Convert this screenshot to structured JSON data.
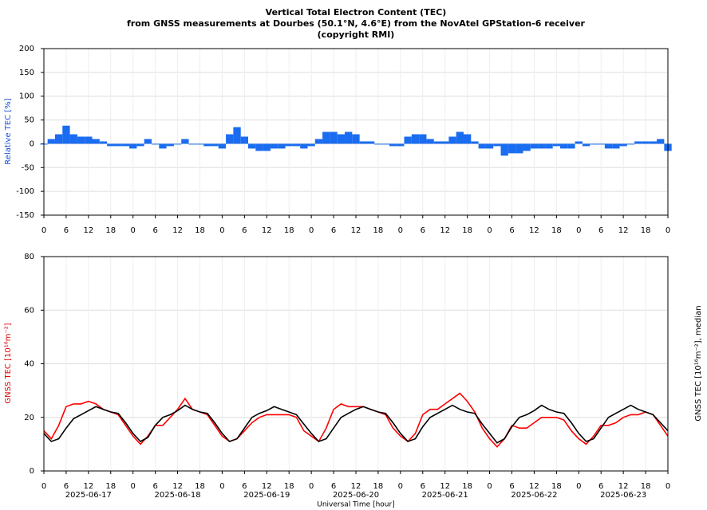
{
  "chart_data": [
    {
      "type": "bar",
      "title_lines": [
        "Vertical Total Electron Content (TEC)",
        "from GNSS measurements at Dourbes (50.1°N, 4.6°E) from the NovAtel GPStation-6 receiver",
        "(copyright RMI)"
      ],
      "ylabel": "Relative TEC [%]",
      "ylim": [
        -150,
        200
      ],
      "yticks": [
        -150,
        -100,
        -50,
        0,
        50,
        100,
        150,
        200
      ],
      "xlim": [
        0,
        168
      ],
      "xticks": [
        0,
        6,
        12,
        18,
        {
          "value": 24,
          "label": "0"
        },
        {
          "value": 30,
          "label": "6"
        },
        {
          "value": 36,
          "label": "12"
        },
        {
          "value": 42,
          "label": "18"
        },
        {
          "value": 48,
          "label": "0"
        },
        {
          "value": 54,
          "label": "6"
        },
        {
          "value": 60,
          "label": "12"
        },
        {
          "value": 66,
          "label": "18"
        },
        {
          "value": 72,
          "label": "0"
        },
        {
          "value": 78,
          "label": "6"
        },
        {
          "value": 84,
          "label": "12"
        },
        {
          "value": 90,
          "label": "18"
        },
        {
          "value": 96,
          "label": "0"
        },
        {
          "value": 102,
          "label": "6"
        },
        {
          "value": 108,
          "label": "12"
        },
        {
          "value": 114,
          "label": "18"
        },
        {
          "value": 120,
          "label": "0"
        },
        {
          "value": 126,
          "label": "6"
        },
        {
          "value": 132,
          "label": "12"
        },
        {
          "value": 138,
          "label": "18"
        },
        {
          "value": 144,
          "label": "0"
        },
        {
          "value": 150,
          "label": "6"
        },
        {
          "value": 156,
          "label": "12"
        },
        {
          "value": 162,
          "label": "18"
        },
        {
          "value": 168,
          "label": "0"
        }
      ],
      "grid": true,
      "x": [
        0,
        2,
        4,
        6,
        8,
        10,
        12,
        14,
        16,
        18,
        20,
        22,
        24,
        26,
        28,
        30,
        32,
        34,
        36,
        38,
        40,
        42,
        44,
        46,
        48,
        50,
        52,
        54,
        56,
        58,
        60,
        62,
        64,
        66,
        68,
        70,
        72,
        74,
        76,
        78,
        80,
        82,
        84,
        86,
        88,
        90,
        92,
        94,
        96,
        98,
        100,
        102,
        104,
        106,
        108,
        110,
        112,
        114,
        116,
        118,
        120,
        122,
        124,
        126,
        128,
        130,
        132,
        134,
        136,
        138,
        140,
        142,
        144,
        146,
        148,
        150,
        152,
        154,
        156,
        158,
        160,
        162,
        164,
        166,
        168
      ],
      "series": [
        {
          "name": "Relative TEC",
          "color": "#1a6cf0",
          "values": [
            0,
            10,
            20,
            38,
            20,
            15,
            15,
            10,
            5,
            -5,
            -5,
            -5,
            -10,
            -5,
            10,
            0,
            -10,
            -5,
            0,
            10,
            0,
            0,
            -5,
            -5,
            -10,
            20,
            35,
            15,
            -10,
            -15,
            -15,
            -10,
            -10,
            -5,
            -5,
            -10,
            -5,
            10,
            25,
            25,
            20,
            25,
            20,
            5,
            5,
            0,
            0,
            -5,
            -5,
            15,
            20,
            20,
            10,
            5,
            5,
            15,
            25,
            20,
            5,
            -10,
            -10,
            -5,
            -25,
            -20,
            -20,
            -15,
            -10,
            -10,
            -10,
            -5,
            -10,
            -10,
            5,
            -5,
            0,
            0,
            -10,
            -10,
            -5,
            0,
            5,
            5,
            5,
            10,
            -15
          ]
        }
      ]
    },
    {
      "type": "line",
      "ylabel": "GNSS TEC [10¹⁶m⁻²]",
      "y2label": "GNSS TEC [10¹⁶m⁻²], median",
      "xlabel": "Universal Time [hour]",
      "ylim": [
        0,
        80
      ],
      "yticks": [
        0,
        20,
        40,
        60,
        80
      ],
      "xlim": [
        0,
        168
      ],
      "xticks": [
        0,
        6,
        12,
        18,
        {
          "value": 24,
          "label": "0"
        },
        {
          "value": 30,
          "label": "6"
        },
        {
          "value": 36,
          "label": "12"
        },
        {
          "value": 42,
          "label": "18"
        },
        {
          "value": 48,
          "label": "0"
        },
        {
          "value": 54,
          "label": "6"
        },
        {
          "value": 60,
          "label": "12"
        },
        {
          "value": 66,
          "label": "18"
        },
        {
          "value": 72,
          "label": "0"
        },
        {
          "value": 78,
          "label": "6"
        },
        {
          "value": 84,
          "label": "12"
        },
        {
          "value": 90,
          "label": "18"
        },
        {
          "value": 96,
          "label": "0"
        },
        {
          "value": 102,
          "label": "6"
        },
        {
          "value": 108,
          "label": "12"
        },
        {
          "value": 114,
          "label": "18"
        },
        {
          "value": 120,
          "label": "0"
        },
        {
          "value": 126,
          "label": "6"
        },
        {
          "value": 132,
          "label": "12"
        },
        {
          "value": 138,
          "label": "18"
        },
        {
          "value": 144,
          "label": "0"
        },
        {
          "value": 150,
          "label": "6"
        },
        {
          "value": 156,
          "label": "12"
        },
        {
          "value": 162,
          "label": "18"
        },
        {
          "value": 168,
          "label": "0"
        }
      ],
      "date_ticks": [
        {
          "value": 12,
          "label": "2025-06-17"
        },
        {
          "value": 36,
          "label": "2025-06-18"
        },
        {
          "value": 60,
          "label": "2025-06-19"
        },
        {
          "value": 84,
          "label": "2025-06-20"
        },
        {
          "value": 108,
          "label": "2025-06-21"
        },
        {
          "value": 132,
          "label": "2025-06-22"
        },
        {
          "value": 156,
          "label": "2025-06-23"
        }
      ],
      "grid": true,
      "x": [
        0,
        2,
        4,
        6,
        8,
        10,
        12,
        14,
        16,
        18,
        20,
        22,
        24,
        26,
        28,
        30,
        32,
        34,
        36,
        38,
        40,
        42,
        44,
        46,
        48,
        50,
        52,
        54,
        56,
        58,
        60,
        62,
        64,
        66,
        68,
        70,
        72,
        74,
        76,
        78,
        80,
        82,
        84,
        86,
        88,
        90,
        92,
        94,
        96,
        98,
        100,
        102,
        104,
        106,
        108,
        110,
        112,
        114,
        116,
        118,
        120,
        122,
        124,
        126,
        128,
        130,
        132,
        134,
        136,
        138,
        140,
        142,
        144,
        146,
        148,
        150,
        152,
        154,
        156,
        158,
        160,
        162,
        164,
        166,
        168
      ],
      "series": [
        {
          "name": "GNSS TEC",
          "color": "#ff0000",
          "values": [
            15,
            12,
            17,
            24,
            25,
            25,
            26,
            25,
            23,
            22,
            21,
            17,
            13,
            10,
            13,
            17,
            17,
            20,
            23,
            27,
            23,
            22,
            21,
            17,
            13,
            11,
            12,
            15,
            18,
            20,
            21,
            21,
            21,
            21,
            20,
            15,
            13,
            11,
            16,
            23,
            25,
            24,
            24,
            24,
            23,
            22,
            21,
            16,
            13,
            11,
            14,
            21,
            23,
            23,
            25,
            27,
            29,
            26,
            22,
            16,
            12,
            9,
            12,
            17,
            16,
            16,
            18,
            20,
            20,
            20,
            19,
            15,
            12,
            10,
            13,
            17,
            17,
            18,
            20,
            21,
            21,
            22,
            21,
            17,
            13
          ]
        },
        {
          "name": "median",
          "color": "#000000",
          "values": [
            14,
            11,
            12,
            16,
            19.5,
            21,
            22.5,
            24,
            23,
            22,
            21.5,
            18,
            14,
            11,
            12.5,
            17,
            20,
            21,
            22.5,
            24.5,
            23,
            22,
            21.5,
            18,
            14,
            11,
            12,
            16,
            20,
            21.5,
            22.5,
            24,
            23,
            22,
            21,
            17.5,
            14,
            11,
            12,
            16,
            20,
            21.5,
            23,
            24,
            23,
            22,
            21.5,
            18,
            14,
            11,
            12,
            16.5,
            20,
            21.5,
            23,
            24.5,
            23,
            22,
            21.5,
            17.5,
            14,
            10.5,
            12,
            16.5,
            20,
            21,
            22.5,
            24.5,
            23,
            22,
            21.5,
            18,
            14,
            11,
            12,
            16,
            20,
            21.5,
            23,
            24.5,
            23,
            22,
            21,
            18,
            15
          ]
        }
      ]
    }
  ]
}
